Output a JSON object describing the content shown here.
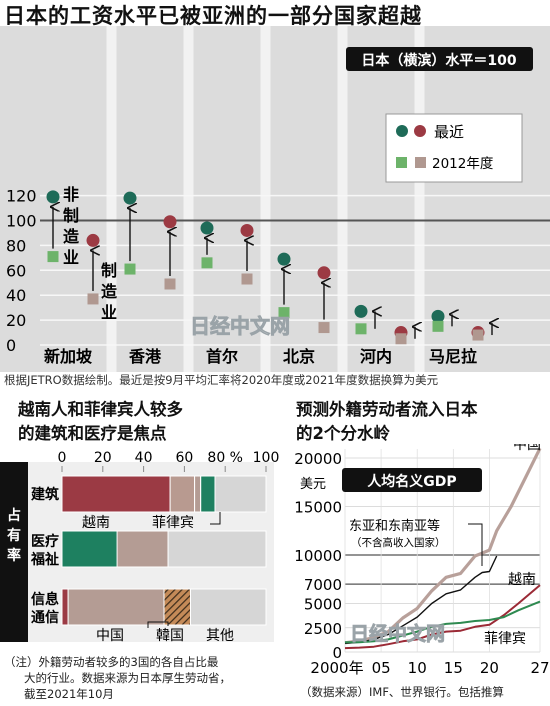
{
  "top": {
    "title": "日本的工资水平已被亚洲的一部分国家超越",
    "badge": "日本（横滨）水平＝100",
    "legend": {
      "recent": "最近",
      "fy2012": "2012年度"
    },
    "annot": {
      "nonmfg": "非制造业",
      "mfg": "制造业"
    },
    "source": "根据JETRO数据绘制。最近是按9月平均汇率将2020年度或2021年度数据换算为美元",
    "watermark": "日经中文网"
  },
  "bottom_left": {
    "title_line1": "越南人和菲律宾人较多",
    "title_line2": "的建筑和医疗是焦点",
    "side_label": "占有率",
    "note_line1": "（注）外籍劳动者较多的3国的各自占比最",
    "note_line2": "大的行业。数据来源为日本厚生劳动省，",
    "note_line3": "截至2021年10月"
  },
  "bottom_right": {
    "title_line1": "预测外籍劳动者流入日本",
    "title_line2": "的2个分水岭",
    "unit": "美元",
    "box_label": "人均名义GDP",
    "group_label": "东亚和东南亚等",
    "group_sub": "（不含高收入国家）",
    "source": "（数据来源）IMF、世界银行。包括推算",
    "watermark": "日经中文网"
  },
  "chart_data": [
    {
      "type": "scatter",
      "title": "日本的工资水平已被亚洲的一部分国家超越",
      "yticks": [
        0,
        20,
        40,
        60,
        80,
        100,
        120
      ],
      "ylim": [
        0,
        130
      ],
      "reference_line": 100,
      "categories": [
        "新加坡",
        "香港",
        "首尔",
        "北京",
        "河内",
        "马尼拉"
      ],
      "series": [
        {
          "name": "最近",
          "sector": "非制造业",
          "color": "#1e6b58",
          "values": [
            119,
            118,
            94,
            69,
            27,
            23
          ]
        },
        {
          "name": "2012年度",
          "sector": "非制造业",
          "color": "#6db36a",
          "values": [
            71,
            61,
            66,
            26,
            13,
            15
          ]
        },
        {
          "name": "最近",
          "sector": "制造业",
          "color": "#9c3a43",
          "values": [
            84,
            99,
            92,
            58,
            10,
            10
          ]
        },
        {
          "name": "2012年度",
          "sector": "制造业",
          "color": "#b09890",
          "values": [
            37,
            49,
            53,
            14,
            5,
            8
          ]
        }
      ],
      "legend_position": "right"
    },
    {
      "type": "bar",
      "orientation": "horizontal",
      "stacked": true,
      "title": "越南人和菲律宾人较多的建筑和医疗是焦点",
      "ylabel": "占有率",
      "xticks": [
        0,
        20,
        40,
        60,
        80,
        100
      ],
      "xtick_labels": [
        "0",
        "20",
        "40",
        "60",
        "80 %",
        "100"
      ],
      "xlim": [
        0,
        100
      ],
      "categories": [
        "建筑",
        "医疗福祉",
        "信息通信"
      ],
      "series": [
        {
          "name": "越南",
          "color": "#9b3a44",
          "values": [
            53,
            12,
            3
          ]
        },
        {
          "name": "菲律宾",
          "color": "#b89a90",
          "values": [
            12,
            13,
            0
          ]
        },
        {
          "name": "中国",
          "color": "#b49c94",
          "values": [
            3,
            27,
            47
          ]
        },
        {
          "name": "韓国",
          "color": "#7a4a2a",
          "pattern": "hatch",
          "values": [
            0,
            0,
            13
          ]
        },
        {
          "name": "其他",
          "color": "#d6d6d6",
          "values": [
            32,
            48,
            37
          ]
        }
      ],
      "emphasis_segments": [
        {
          "category": "建筑",
          "color": "#1e8060",
          "from": 68,
          "to": 75
        },
        {
          "category": "医疗福祉",
          "color": "#1e8060",
          "from": 0,
          "to": 27
        }
      ]
    },
    {
      "type": "line",
      "title": "预测外籍劳动者流入日本的2个分水岭",
      "ylabel": "美元",
      "xlim": [
        2000,
        2027
      ],
      "ylim": [
        0,
        21000
      ],
      "xticks": [
        2000,
        2005,
        2010,
        2015,
        2020,
        2027
      ],
      "xtick_labels": [
        "2000年",
        "05",
        "10",
        "15",
        "20",
        "27"
      ],
      "yticks": [
        0,
        2500,
        5000,
        7000,
        10000,
        15000,
        20000
      ],
      "ytick_labels": [
        "0",
        "2500",
        "5000",
        "7000",
        "10000",
        "15000",
        "20000"
      ],
      "reference_lines": [
        7000,
        10000
      ],
      "series": [
        {
          "name": "中国",
          "color": "#b8a09a",
          "x": [
            2000,
            2002,
            2004,
            2006,
            2008,
            2010,
            2012,
            2014,
            2016,
            2018,
            2019,
            2020,
            2021,
            2023,
            2025,
            2027
          ],
          "y": [
            950,
            1150,
            1500,
            2100,
            3500,
            4500,
            6300,
            7700,
            8100,
            9900,
            10200,
            10500,
            12500,
            15000,
            18000,
            21000
          ]
        },
        {
          "name": "东亚和东南亚等",
          "color": "#111111",
          "x": [
            2000,
            2002,
            2004,
            2006,
            2008,
            2010,
            2012,
            2014,
            2016,
            2018,
            2019,
            2020,
            2021
          ],
          "y": [
            900,
            1000,
            1300,
            1800,
            2700,
            3600,
            5000,
            6000,
            6400,
            7700,
            8200,
            8300,
            9900
          ]
        },
        {
          "name": "越南",
          "color": "#9b2a36",
          "x": [
            2000,
            2002,
            2004,
            2006,
            2008,
            2010,
            2012,
            2014,
            2016,
            2018,
            2020,
            2022,
            2024,
            2027
          ],
          "y": [
            400,
            450,
            550,
            800,
            1100,
            1300,
            1800,
            2100,
            2200,
            2600,
            2800,
            3800,
            5000,
            6900
          ]
        },
        {
          "name": "菲律宾",
          "color": "#2e8a50",
          "x": [
            2000,
            2002,
            2004,
            2006,
            2008,
            2010,
            2012,
            2014,
            2016,
            2018,
            2020,
            2022,
            2024,
            2027
          ],
          "y": [
            1000,
            1000,
            1100,
            1300,
            1700,
            2100,
            2600,
            2900,
            3000,
            3200,
            3300,
            3600,
            4300,
            5200
          ]
        }
      ]
    }
  ]
}
